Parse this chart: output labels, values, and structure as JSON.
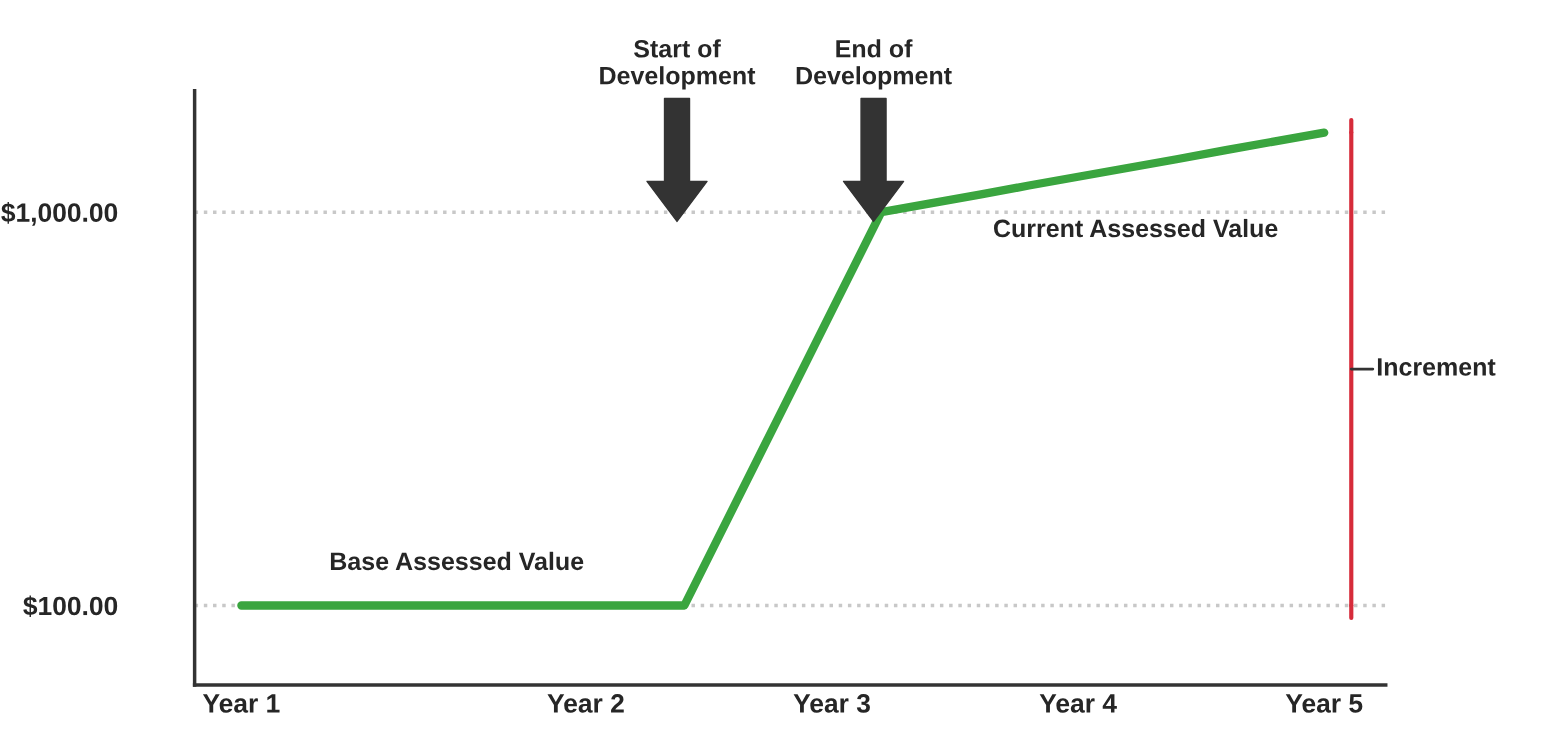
{
  "chart_data": {
    "type": "line",
    "categories": [
      "Year 1",
      null,
      null,
      null,
      null,
      null,
      null,
      "Year 2",
      null,
      null,
      null,
      null,
      "Year 3",
      null,
      null,
      null,
      null,
      "Year 4",
      null,
      null,
      null,
      null,
      "Year 5"
    ],
    "series": [
      {
        "color": "#3aa53f",
        "values": [
          100,
          100,
          100,
          100,
          100,
          100,
          100,
          100,
          100,
          100,
          325,
          550,
          775,
          1000,
          1020,
          1040,
          1061,
          1081,
          1101,
          1121,
          1142,
          1162,
          1182
        ]
      }
    ],
    "ylim": [
      -82,
      1278
    ],
    "yticks": [
      {
        "value": 100,
        "label": "$100.00"
      },
      {
        "value": 1000,
        "label": "$1,000.00"
      }
    ],
    "ref_lines": [
      {
        "axis": "y",
        "value": 1000,
        "color": "#c8c8c8",
        "line_style": "dotted"
      },
      {
        "axis": "y",
        "value": 100,
        "color": "#c8c8c8",
        "line_style": "dotted"
      }
    ],
    "annotations": [
      "Start of\nDevelopment",
      "End of\nDevelopment",
      "Base Assessed Value",
      "Current Assessed Value",
      "Increment"
    ],
    "grid": false,
    "marker": "none",
    "line_style": "solid"
  }
}
